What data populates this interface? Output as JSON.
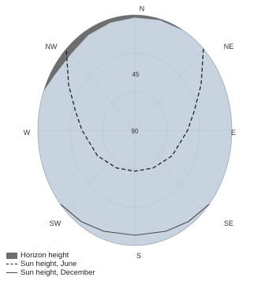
{
  "chart_data": {
    "type": "polar",
    "directions": [
      "N",
      "NE",
      "E",
      "SE",
      "S",
      "SW",
      "W",
      "NW"
    ],
    "elevation_ring_labels": [
      "45",
      "90"
    ],
    "series": [
      {
        "name": "Horizon height",
        "style": "filled",
        "color": "#6e6e6e",
        "points": [
          {
            "azimuth": 290,
            "elevation": 0
          },
          {
            "azimuth": 300,
            "elevation": 4
          },
          {
            "azimuth": 315,
            "elevation": 6
          },
          {
            "azimuth": 330,
            "elevation": 4
          },
          {
            "azimuth": 345,
            "elevation": 3
          },
          {
            "azimuth": 0,
            "elevation": 2
          },
          {
            "azimuth": 15,
            "elevation": 1
          },
          {
            "azimuth": 30,
            "elevation": 0
          }
        ]
      },
      {
        "name": "Sun height, June",
        "style": "dashed",
        "color": "#222222",
        "points": [
          {
            "azimuth": 45,
            "elevation": 0
          },
          {
            "azimuth": 60,
            "elevation": 19
          },
          {
            "azimuth": 75,
            "elevation": 33
          },
          {
            "azimuth": 90,
            "elevation": 41
          },
          {
            "azimuth": 120,
            "elevation": 50
          },
          {
            "azimuth": 150,
            "elevation": 56
          },
          {
            "azimuth": 180,
            "elevation": 58
          },
          {
            "azimuth": 210,
            "elevation": 56
          },
          {
            "azimuth": 240,
            "elevation": 50
          },
          {
            "azimuth": 270,
            "elevation": 41
          },
          {
            "azimuth": 285,
            "elevation": 33
          },
          {
            "azimuth": 300,
            "elevation": 19
          },
          {
            "azimuth": 315,
            "elevation": 0
          }
        ]
      },
      {
        "name": "Sun height, December",
        "style": "solid",
        "color": "#4a4a4a",
        "points": [
          {
            "azimuth": 130,
            "elevation": 0
          },
          {
            "azimuth": 145,
            "elevation": 3
          },
          {
            "azimuth": 160,
            "elevation": 6
          },
          {
            "azimuth": 180,
            "elevation": 8
          },
          {
            "azimuth": 200,
            "elevation": 6
          },
          {
            "azimuth": 215,
            "elevation": 3
          },
          {
            "azimuth": 230,
            "elevation": 0
          }
        ]
      }
    ],
    "legend": [
      {
        "label": "Horizon height",
        "kind": "swatch",
        "color": "#6e6e6e"
      },
      {
        "label": "Sun height, June",
        "kind": "dashed",
        "color": "#222222"
      },
      {
        "label": "Sun height, December",
        "kind": "solid",
        "color": "#4a4a4a"
      }
    ],
    "legend_position": "bottom-left",
    "colors": {
      "sky": "#c7d3df",
      "sky_stroke": "#9aaab8",
      "grid": "#b4c1cd"
    }
  }
}
